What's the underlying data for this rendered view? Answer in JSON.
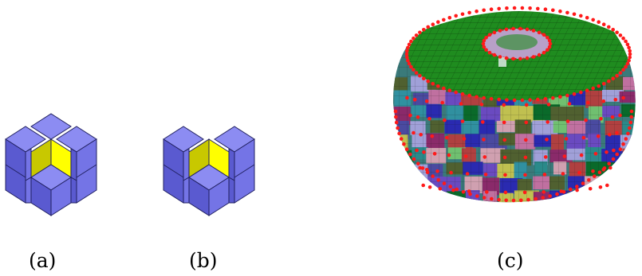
{
  "figure": {
    "panels": [
      {
        "id": "a",
        "caption": "(a)",
        "content": "cube-cluster-concave-corner"
      },
      {
        "id": "b",
        "caption": "(b)",
        "content": "cube-cluster-notched-corner"
      },
      {
        "id": "c",
        "caption": "(c)",
        "content": "voxelized-torus-with-red-vertices"
      }
    ]
  },
  "colors": {
    "cube_top": "#8c8cf2",
    "cube_left": "#5a5ad0",
    "cube_right": "#7474e6",
    "highlight_left": "#c8c800",
    "highlight_right": "#ffff00",
    "edge": "#202060",
    "vertex": "#ff1a1a",
    "torus_top": "#1f8c1f"
  }
}
